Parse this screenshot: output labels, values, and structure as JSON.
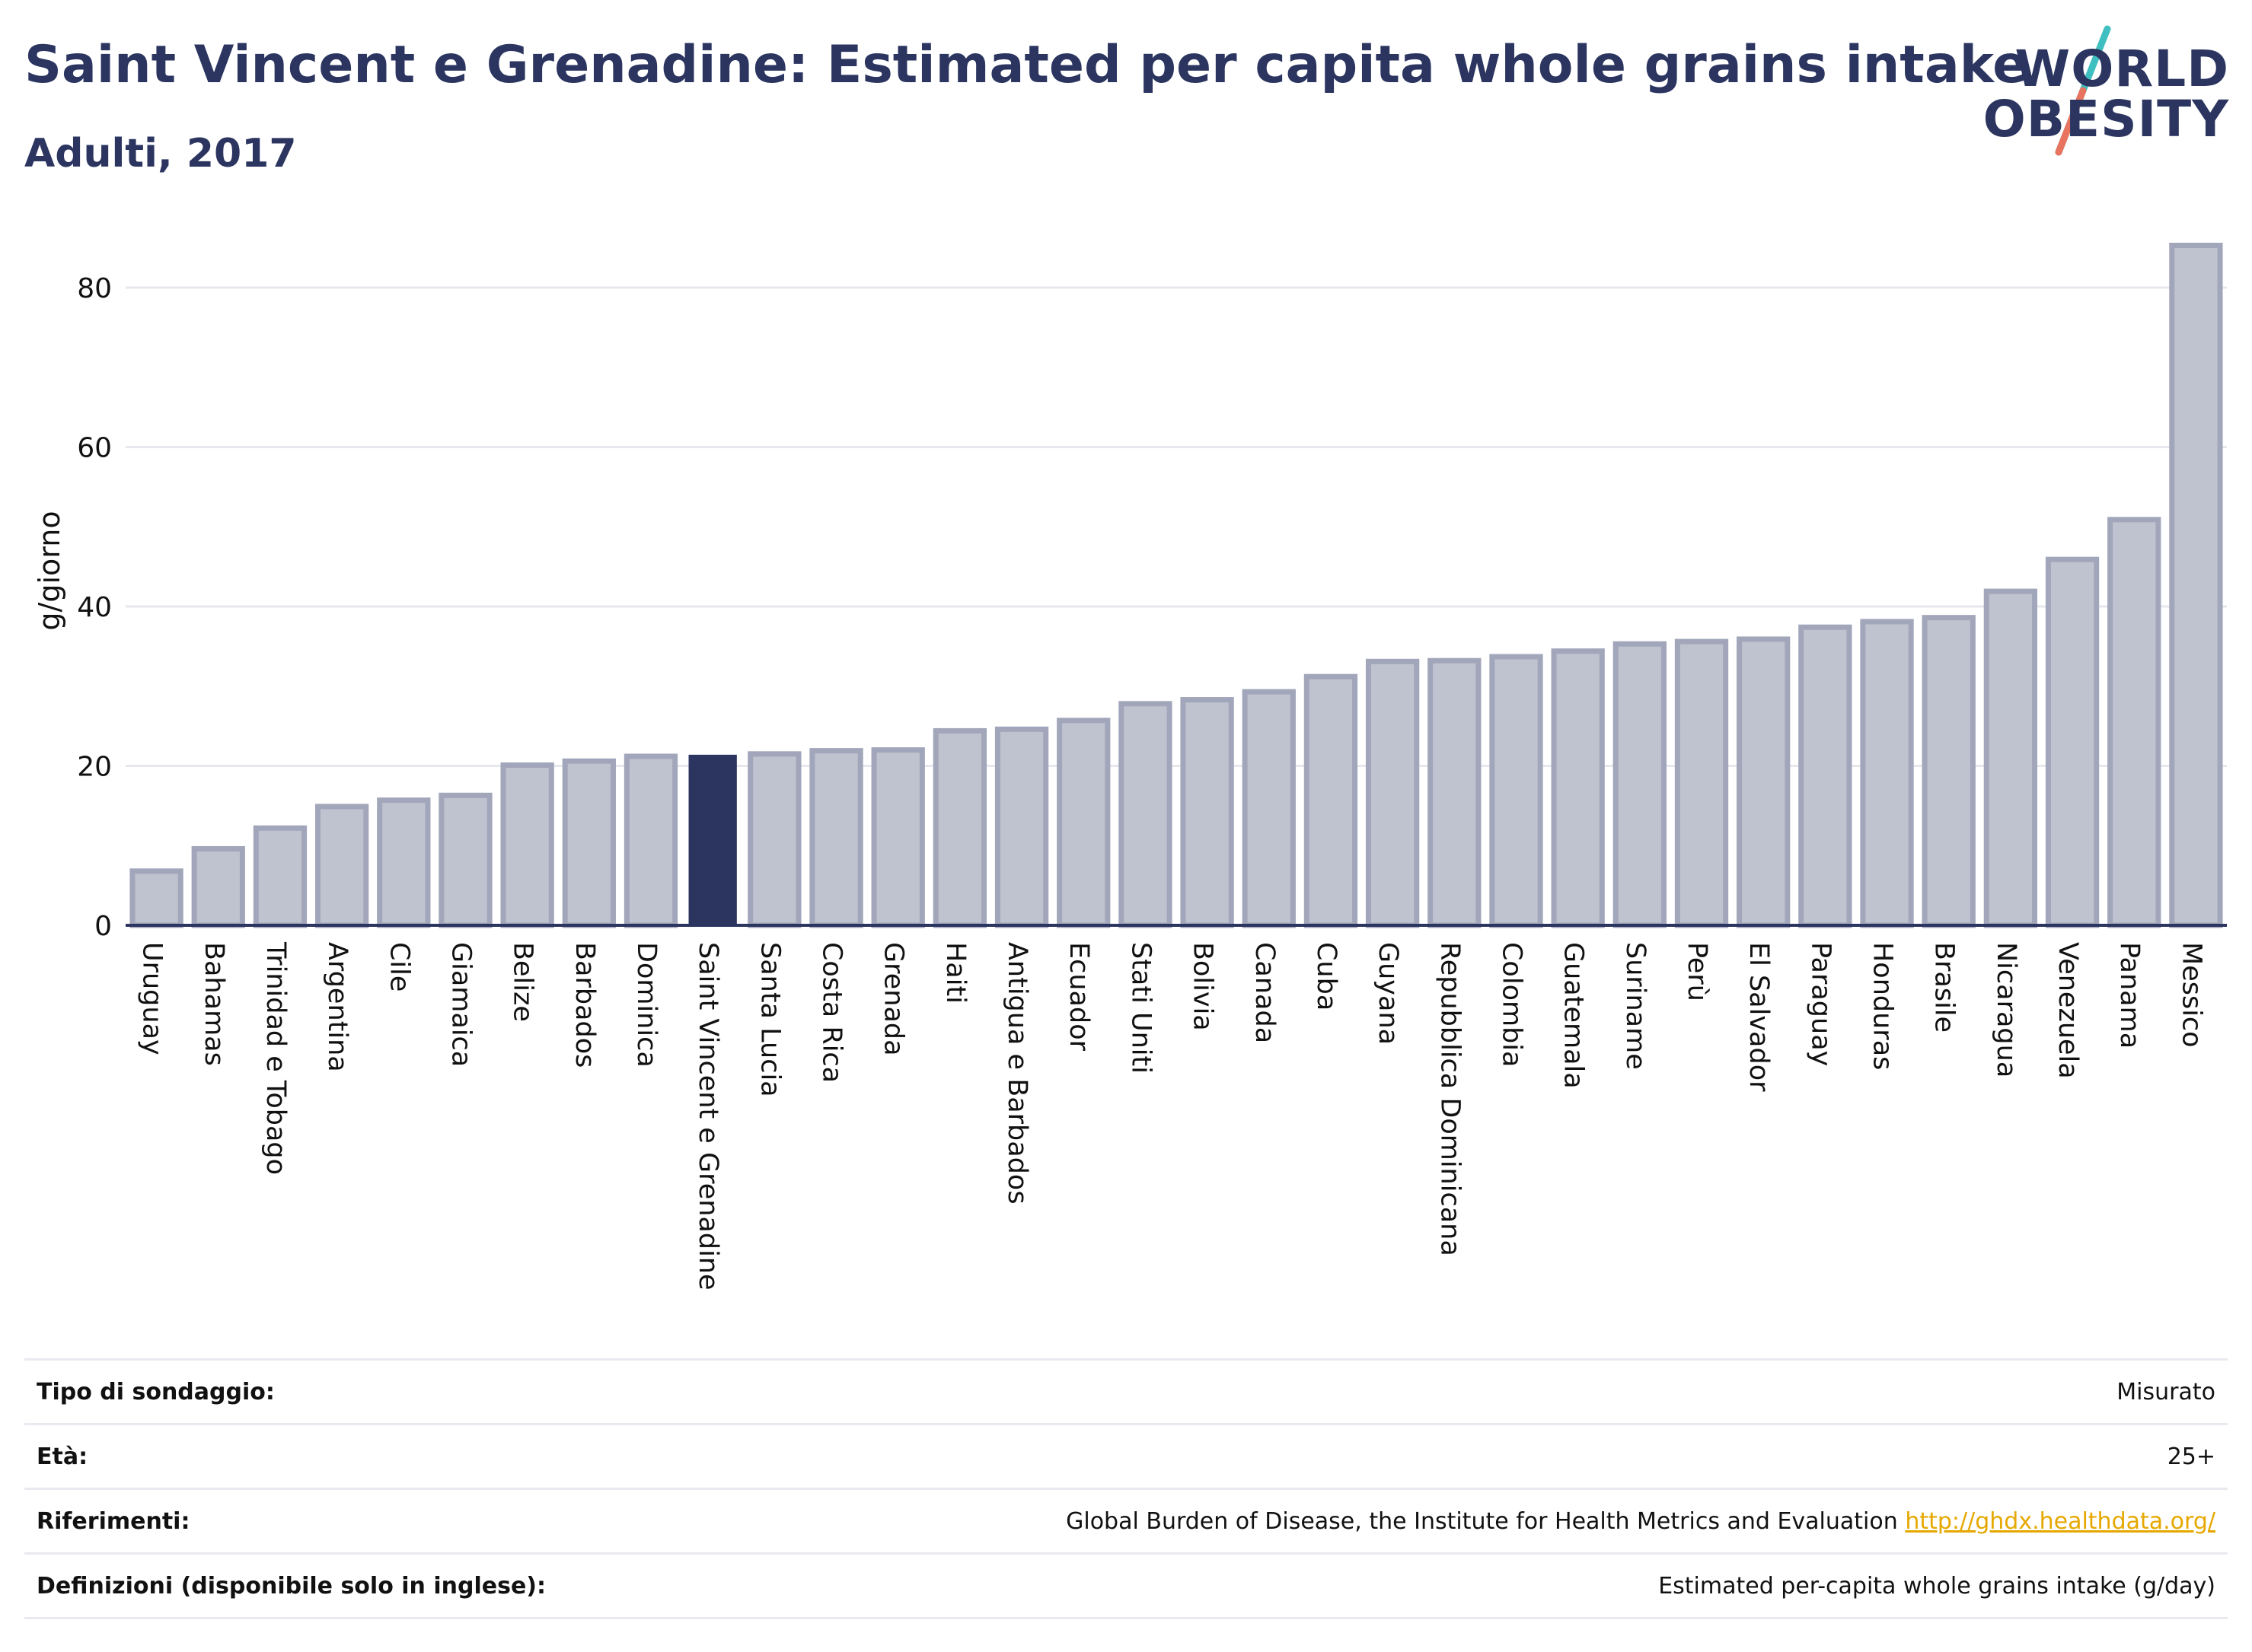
{
  "chart_data": {
    "type": "bar",
    "title": "Saint Vincent e Grenadine: Estimated per capita whole grains intake",
    "subtitle": "Adulti, 2017",
    "xlabel": "",
    "ylabel": "g/giorno",
    "ylim": [
      0,
      88
    ],
    "yticks": [
      0,
      20,
      40,
      60,
      80
    ],
    "grid": true,
    "highlight": "Saint Vincent e Grenadine",
    "colors": {
      "bar_fill": "#bfc2cf",
      "bar_stroke": "#a2a6ba",
      "highlight_fill": "#2b3560",
      "grid": "#e6e8ee",
      "axis": "#2b3560"
    },
    "categories": [
      "Uruguay",
      "Bahamas",
      "Trinidad e Tobago",
      "Argentina",
      "Cile",
      "Giamaica",
      "Belize",
      "Barbados",
      "Dominica",
      "Saint Vincent e Grenadine",
      "Santa Lucia",
      "Costa Rica",
      "Grenada",
      "Haiti",
      "Antigua e Barbados",
      "Ecuador",
      "Stati Uniti",
      "Bolivia",
      "Canada",
      "Cuba",
      "Guyana",
      "Repubblica Dominicana",
      "Colombia",
      "Guatemala",
      "Suriname",
      "Perù",
      "El Salvador",
      "Paraguay",
      "Honduras",
      "Brasile",
      "Nicaragua",
      "Venezuela",
      "Panama",
      "Messico"
    ],
    "values": [
      6.8,
      9.6,
      12.2,
      14.9,
      15.7,
      16.3,
      20.1,
      20.6,
      21.2,
      21.4,
      21.5,
      21.9,
      22.0,
      24.4,
      24.6,
      25.7,
      27.8,
      28.3,
      29.3,
      31.2,
      33.1,
      33.2,
      33.7,
      34.4,
      35.3,
      35.6,
      35.9,
      37.4,
      38.1,
      38.6,
      41.9,
      45.9,
      50.9,
      85.3
    ]
  },
  "logo": {
    "line1": "WORLD",
    "line2": "OBESITY",
    "slash_colors": [
      "#3fbfbf",
      "#e8735e"
    ]
  },
  "info": {
    "survey_label": "Tipo di sondaggio:",
    "survey_value": "Misurato",
    "age_label": "Età:",
    "age_value": "25+",
    "refs_label": "Riferimenti:",
    "refs_text": "Global Burden of Disease, the Institute for Health Metrics and Evaluation",
    "refs_link": "http://ghdx.healthdata.org/",
    "defs_label": "Definizioni (disponibile solo in inglese):",
    "defs_value": "Estimated per-capita whole grains intake (g/day)"
  }
}
